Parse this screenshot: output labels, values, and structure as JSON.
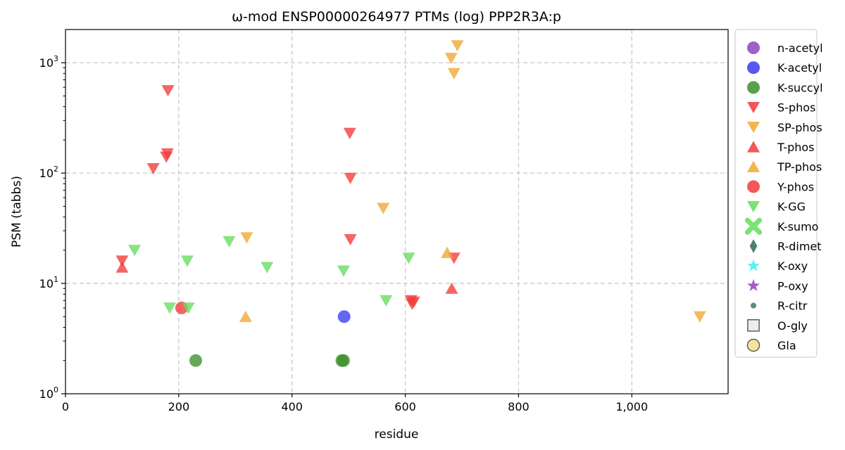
{
  "chart_data": {
    "type": "scatter",
    "title": "ω-mod ENSP00000264977 PTMs (log) PPP2R3A:p",
    "xlabel": "residue",
    "ylabel": "PSM (tabbs)",
    "xlim": [
      0,
      1170
    ],
    "ylim": [
      1,
      2000
    ],
    "yscale": "log",
    "grid": true,
    "legend_position": "right outside",
    "x_ticks": [
      0,
      200,
      400,
      600,
      800,
      1000
    ],
    "x_tick_labels": [
      "0",
      "200",
      "400",
      "600",
      "800",
      "1,000"
    ],
    "y_ticks": [
      1,
      10,
      100,
      1000
    ],
    "y_tick_labels": [
      {
        "base": "10",
        "exp": "0"
      },
      {
        "base": "10",
        "exp": "1"
      },
      {
        "base": "10",
        "exp": "2"
      },
      {
        "base": "10",
        "exp": "3"
      }
    ],
    "series": [
      {
        "name": "n-acetyl",
        "marker": "circle",
        "color": "#8e44c0",
        "points": []
      },
      {
        "name": "K-acetyl",
        "marker": "circle",
        "color": "#3a3af0",
        "points": [
          [
            492,
            5
          ]
        ]
      },
      {
        "name": "K-succyl",
        "marker": "circle",
        "color": "#3c8f2c",
        "points": [
          [
            230,
            2
          ],
          [
            488,
            2
          ],
          [
            491,
            2
          ]
        ]
      },
      {
        "name": "S-phos",
        "marker": "triangle-down",
        "color": "#f23a3a",
        "points": [
          [
            100,
            16
          ],
          [
            155,
            110
          ],
          [
            178,
            140
          ],
          [
            180,
            150
          ],
          [
            181,
            560
          ],
          [
            502,
            230
          ],
          [
            503,
            90
          ],
          [
            503,
            25
          ],
          [
            610,
            7
          ],
          [
            612,
            6.5
          ],
          [
            615,
            6.8
          ],
          [
            686,
            17
          ]
        ]
      },
      {
        "name": "SP-phos",
        "marker": "triangle-down",
        "color": "#f0a830",
        "points": [
          [
            320,
            26
          ],
          [
            561,
            48
          ],
          [
            681,
            1100
          ],
          [
            686,
            800
          ],
          [
            692,
            1430
          ],
          [
            1120,
            5
          ]
        ]
      },
      {
        "name": "T-phos",
        "marker": "triangle-up",
        "color": "#f23a3a",
        "points": [
          [
            100,
            14
          ],
          [
            682,
            9
          ]
        ]
      },
      {
        "name": "TP-phos",
        "marker": "triangle-up",
        "color": "#f0a830",
        "points": [
          [
            318,
            5
          ],
          [
            674,
            19
          ]
        ]
      },
      {
        "name": "Y-phos",
        "marker": "circle",
        "color": "#f23a3a",
        "points": [
          [
            205,
            6
          ]
        ]
      },
      {
        "name": "K-GG",
        "marker": "triangle-down",
        "color": "#66dd5c",
        "points": [
          [
            122,
            20
          ],
          [
            184,
            6
          ],
          [
            215,
            16
          ],
          [
            217,
            6
          ],
          [
            289,
            24
          ],
          [
            356,
            14
          ],
          [
            491,
            13
          ],
          [
            566,
            7
          ],
          [
            606,
            17
          ]
        ]
      },
      {
        "name": "K-sumo",
        "marker": "x",
        "color": "#66dd5c",
        "points": []
      },
      {
        "name": "R-dimet",
        "marker": "thin-diamond",
        "color": "#2e6b55",
        "points": []
      },
      {
        "name": "K-oxy",
        "marker": "star",
        "color": "#3ef0f0",
        "points": []
      },
      {
        "name": "P-oxy",
        "marker": "star",
        "color": "#8e44c0",
        "points": []
      },
      {
        "name": "R-citr",
        "marker": "small-circle",
        "color": "#3a7a5a",
        "points": []
      },
      {
        "name": "O-gly",
        "marker": "square",
        "color": "#ededed",
        "points": []
      },
      {
        "name": "Gla",
        "marker": "circle-outline",
        "color": "#f6e3a0",
        "points": []
      }
    ]
  }
}
